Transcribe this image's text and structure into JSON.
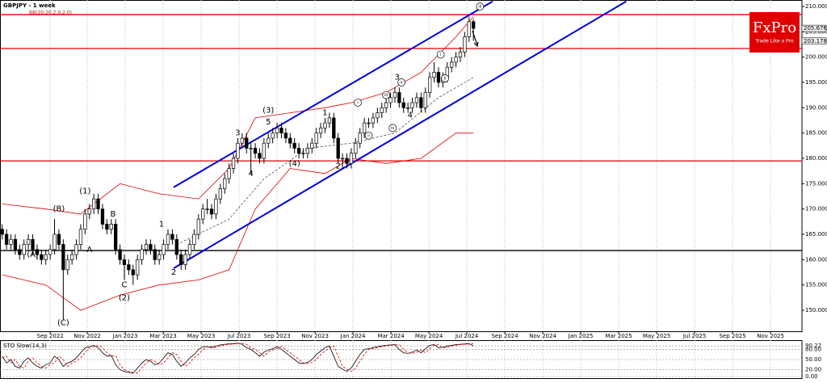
{
  "chart_data": {
    "type": "candlestick",
    "title": "GBPJPY - 1 week",
    "subtitle": "BB(20,20,2.0,2.0)",
    "candles": [
      [
        166,
        167,
        164,
        165
      ],
      [
        165,
        166,
        162,
        163
      ],
      [
        163,
        165,
        162,
        164
      ],
      [
        164,
        165,
        161,
        162
      ],
      [
        162,
        163,
        160,
        161
      ],
      [
        161,
        164,
        160,
        163
      ],
      [
        163,
        165,
        162,
        164
      ],
      [
        164,
        165,
        161,
        162
      ],
      [
        162,
        163,
        160,
        161
      ],
      [
        161,
        162,
        159,
        160
      ],
      [
        160,
        162,
        159,
        161
      ],
      [
        161,
        163,
        160,
        162
      ],
      [
        162,
        168,
        161,
        165
      ],
      [
        165,
        166,
        162,
        163
      ],
      [
        163,
        164,
        148,
        158
      ],
      [
        158,
        161,
        157,
        160
      ],
      [
        160,
        162,
        159,
        161
      ],
      [
        161,
        164,
        160,
        163
      ],
      [
        163,
        167,
        162,
        166
      ],
      [
        166,
        170,
        165,
        169
      ],
      [
        169,
        171,
        168,
        170
      ],
      [
        170,
        173,
        169,
        172
      ],
      [
        172,
        173,
        169,
        170
      ],
      [
        170,
        171,
        166,
        167
      ],
      [
        167,
        168,
        165,
        166
      ],
      [
        166,
        168,
        165,
        167
      ],
      [
        167,
        168,
        161,
        162
      ],
      [
        162,
        163,
        159,
        160
      ],
      [
        160,
        161,
        156,
        159
      ],
      [
        159,
        160,
        157,
        158
      ],
      [
        158,
        159,
        155,
        157
      ],
      [
        157,
        161,
        156,
        160
      ],
      [
        160,
        163,
        159,
        162
      ],
      [
        162,
        164,
        161,
        163
      ],
      [
        163,
        164,
        161,
        162
      ],
      [
        162,
        163,
        159,
        160
      ],
      [
        160,
        162,
        159,
        161
      ],
      [
        161,
        164,
        160,
        163
      ],
      [
        163,
        166,
        162,
        165
      ],
      [
        165,
        166,
        163,
        164
      ],
      [
        164,
        165,
        160,
        161
      ],
      [
        161,
        162,
        158,
        159
      ],
      [
        159,
        162,
        158,
        161
      ],
      [
        161,
        164,
        160,
        163
      ],
      [
        163,
        166,
        162,
        165
      ],
      [
        165,
        169,
        164,
        168
      ],
      [
        168,
        171,
        167,
        170
      ],
      [
        170,
        172,
        169,
        170
      ],
      [
        170,
        171,
        168,
        169
      ],
      [
        169,
        173,
        168,
        172
      ],
      [
        172,
        175,
        171,
        174
      ],
      [
        174,
        177,
        173,
        176
      ],
      [
        176,
        179,
        175,
        178
      ],
      [
        178,
        181,
        177,
        180
      ],
      [
        180,
        184,
        179,
        183
      ],
      [
        183,
        185,
        182,
        184
      ],
      [
        184,
        185,
        181,
        182
      ],
      [
        182,
        183,
        177,
        182
      ],
      [
        182,
        183,
        180,
        181
      ],
      [
        181,
        182,
        179,
        180
      ],
      [
        180,
        184,
        179,
        183
      ],
      [
        183,
        185,
        182,
        184
      ],
      [
        184,
        186,
        183,
        185
      ],
      [
        185,
        187,
        184,
        186
      ],
      [
        186,
        187,
        184,
        185
      ],
      [
        185,
        186,
        183,
        184
      ],
      [
        184,
        185,
        182,
        183
      ],
      [
        183,
        184,
        181,
        182
      ],
      [
        182,
        183,
        180,
        181
      ],
      [
        181,
        182,
        180,
        181
      ],
      [
        181,
        183,
        180,
        182
      ],
      [
        182,
        184,
        181,
        183
      ],
      [
        183,
        186,
        182,
        185
      ],
      [
        185,
        187,
        184,
        186
      ],
      [
        186,
        188,
        185,
        187
      ],
      [
        187,
        189,
        186,
        188
      ],
      [
        188,
        189,
        183,
        184
      ],
      [
        184,
        185,
        179,
        180
      ],
      [
        180,
        181,
        178,
        180
      ],
      [
        180,
        181,
        178,
        179
      ],
      [
        179,
        182,
        178,
        181
      ],
      [
        181,
        184,
        180,
        183
      ],
      [
        183,
        186,
        182,
        185
      ],
      [
        185,
        188,
        184,
        187
      ],
      [
        187,
        188,
        186,
        187
      ],
      [
        187,
        189,
        186,
        188
      ],
      [
        188,
        190,
        187,
        189
      ],
      [
        189,
        191,
        188,
        190
      ],
      [
        190,
        192,
        189,
        191
      ],
      [
        191,
        193,
        190,
        192
      ],
      [
        192,
        194,
        191,
        193
      ],
      [
        193,
        194,
        190,
        191
      ],
      [
        191,
        192,
        189,
        190
      ],
      [
        190,
        191,
        189,
        190
      ],
      [
        190,
        192,
        189,
        191
      ],
      [
        191,
        193,
        190,
        192
      ],
      [
        192,
        193,
        189,
        190
      ],
      [
        190,
        194,
        189,
        193
      ],
      [
        193,
        197,
        192,
        196
      ],
      [
        196,
        199,
        195,
        197
      ],
      [
        197,
        198,
        194,
        195
      ],
      [
        195,
        197,
        194,
        196
      ],
      [
        196,
        199,
        195,
        198
      ],
      [
        198,
        200,
        197,
        199
      ],
      [
        199,
        201,
        198,
        200
      ],
      [
        200,
        202,
        199,
        201
      ],
      [
        201,
        205,
        200,
        204
      ],
      [
        204,
        208,
        203,
        207
      ],
      [
        207,
        207.5,
        203.2,
        205.67
      ]
    ],
    "bands": {
      "color": "#e00000",
      "x": [
        0,
        10,
        18,
        27,
        36,
        45,
        52,
        58,
        66,
        74,
        80,
        88,
        96,
        104,
        108
      ],
      "upper": [
        171,
        170,
        169,
        175,
        173,
        172,
        178,
        188,
        189,
        190,
        191,
        193,
        197,
        204,
        208
      ],
      "lower": [
        157,
        155,
        150,
        153,
        155,
        156,
        158,
        170,
        178,
        177,
        180,
        179,
        180,
        185,
        185
      ]
    },
    "ma": {
      "color": "#555555",
      "x": [
        40,
        52,
        60,
        70,
        80,
        90,
        100,
        108
      ],
      "values": [
        163,
        168,
        176,
        182,
        183,
        185,
        192,
        196
      ]
    },
    "levels": [
      {
        "value": 208.4,
        "color": "#e00000"
      },
      {
        "value": 201.7,
        "color": "#e00000"
      },
      {
        "value": 179.5,
        "color": "#e00000"
      },
      {
        "value": 161.8,
        "color": "#000000"
      }
    ],
    "trend_lines": [
      {
        "x": [
          39.3,
          112.4
        ],
        "y": [
          174.3,
          211
        ],
        "color": "#0000e0"
      },
      {
        "x": [
          39.3,
          143
        ],
        "y": [
          158.3,
          211
        ],
        "color": "#0000e0"
      }
    ],
    "annotations": [
      {
        "text": "(A)",
        "x": 7,
        "y": 161
      },
      {
        "text": "(B)",
        "x": 13,
        "y": 170
      },
      {
        "text": "(C)",
        "x": 14,
        "y": 147.5
      },
      {
        "text": "(1)",
        "x": 19,
        "y": 173.5
      },
      {
        "text": "A",
        "x": 20,
        "y": 162
      },
      {
        "text": "B",
        "x": 25.4,
        "y": 169
      },
      {
        "text": "C",
        "x": 28,
        "y": 155
      },
      {
        "text": "(2)",
        "x": 28,
        "y": 152.5
      },
      {
        "text": "1",
        "x": 36.5,
        "y": 167
      },
      {
        "text": "2",
        "x": 39.3,
        "y": 157.5
      },
      {
        "text": "3",
        "x": 54,
        "y": 185
      },
      {
        "text": "4",
        "x": 57,
        "y": 177
      },
      {
        "text": "(3)",
        "x": 61,
        "y": 189.5
      },
      {
        "text": "5",
        "x": 61,
        "y": 187.2
      },
      {
        "text": "(4)",
        "x": 67,
        "y": 179
      },
      {
        "text": "1",
        "x": 74,
        "y": 189
      },
      {
        "text": "2",
        "x": 77,
        "y": 178.5
      },
      {
        "text": "3",
        "x": 90.5,
        "y": 196
      },
      {
        "text": "4",
        "x": 93.5,
        "y": 188.5
      },
      {
        "text": "i",
        "x": 81.5,
        "y": 191,
        "circled": true
      },
      {
        "text": "ii",
        "x": 84,
        "y": 184.5,
        "circled": true
      },
      {
        "text": "iii",
        "x": 88,
        "y": 192.5,
        "circled": true
      },
      {
        "text": "iv",
        "x": 89.5,
        "y": 186,
        "circled": true
      },
      {
        "text": "v",
        "x": 91.5,
        "y": 195,
        "circled": true
      },
      {
        "text": "i",
        "x": 100.5,
        "y": 200.5,
        "circled": true
      },
      {
        "text": "ii",
        "x": 101.5,
        "y": 195.8,
        "circled": true
      },
      {
        "text": "iii",
        "x": 109.5,
        "y": 210,
        "circled": true
      }
    ],
    "xlim": [
      -0.5,
      183.3
    ],
    "ylim": [
      145.85,
      211.28
    ],
    "yticks": [
      {
        "value": 150,
        "label": "150.000"
      },
      {
        "value": 155,
        "label": "155.000"
      },
      {
        "value": 160,
        "label": "160.000"
      },
      {
        "value": 165,
        "label": "165.000"
      },
      {
        "value": 170,
        "label": "170.000"
      },
      {
        "value": 175,
        "label": "175.000"
      },
      {
        "value": 180,
        "label": "180.000"
      },
      {
        "value": 185,
        "label": "185.000"
      },
      {
        "value": 190,
        "label": "190.000"
      },
      {
        "value": 195,
        "label": "195.000"
      },
      {
        "value": 200,
        "label": "200.000"
      },
      {
        "value": 205,
        "label": "205.000"
      },
      {
        "value": 210,
        "label": "210.000"
      }
    ],
    "price_tags": [
      {
        "value": 205.676,
        "label": "205.676"
      },
      {
        "value": 203.178,
        "label": "203.178"
      }
    ],
    "xticks": [
      {
        "value": 11,
        "label": "Sep 2022"
      },
      {
        "value": 19.5,
        "label": "Nov 2022"
      },
      {
        "value": 28.2,
        "label": "Jan 2023"
      },
      {
        "value": 36.9,
        "label": "Mar 2023"
      },
      {
        "value": 45.6,
        "label": "May 2023"
      },
      {
        "value": 54.3,
        "label": "Jul 2023"
      },
      {
        "value": 63,
        "label": "Sep 2023"
      },
      {
        "value": 71.7,
        "label": "Nov 2023"
      },
      {
        "value": 80.4,
        "label": "Jan 2024"
      },
      {
        "value": 89.1,
        "label": "Mar 2024"
      },
      {
        "value": 97.8,
        "label": "May 2024"
      },
      {
        "value": 106.5,
        "label": "Jul 2024"
      },
      {
        "value": 115.2,
        "label": "Sep 2024"
      },
      {
        "value": 123.9,
        "label": "Nov 2024"
      },
      {
        "value": 132.6,
        "label": "Jan 2025"
      },
      {
        "value": 141.3,
        "label": "Mar 2025"
      },
      {
        "value": 150,
        "label": "May 2025"
      },
      {
        "value": 158.7,
        "label": "Jul 2025"
      },
      {
        "value": 167.4,
        "label": "Sep 2025"
      },
      {
        "value": 176.1,
        "label": "Nov 2025"
      }
    ],
    "grid": true,
    "oscillator": {
      "title": "STO Slow(14,3)",
      "ylim": [
        0,
        100
      ],
      "yticks": [
        {
          "value": 90.22,
          "label": "90.22"
        },
        {
          "value": 80,
          "label": "80.00"
        },
        {
          "value": 50,
          "label": "50.00"
        },
        {
          "value": 20,
          "label": "20.00"
        },
        {
          "value": 0,
          "label": "0.00"
        }
      ],
      "series": [
        {
          "color": "#000000",
          "values": [
            60,
            40,
            50,
            30,
            25,
            45,
            55,
            40,
            30,
            25,
            35,
            40,
            60,
            50,
            30,
            40,
            45,
            55,
            70,
            85,
            88,
            92,
            85,
            70,
            60,
            62,
            35,
            20,
            15,
            12,
            10,
            25,
            40,
            50,
            45,
            35,
            40,
            55,
            70,
            65,
            45,
            30,
            40,
            55,
            65,
            80,
            88,
            88,
            85,
            90,
            93,
            95,
            96,
            97,
            98,
            95,
            85,
            80,
            70,
            60,
            72,
            78,
            82,
            88,
            80,
            70,
            60,
            50,
            40,
            38,
            42,
            50,
            65,
            75,
            85,
            90,
            60,
            30,
            22,
            15,
            25,
            45,
            65,
            80,
            82,
            85,
            88,
            90,
            92,
            93,
            94,
            80,
            70,
            68,
            72,
            78,
            70,
            82,
            92,
            94,
            85,
            86,
            90,
            92,
            94,
            95,
            96,
            97,
            90
          ]
        },
        {
          "color": "#e00000",
          "dashed": true,
          "values": [
            55,
            60,
            40,
            50,
            30,
            25,
            45,
            55,
            40,
            30,
            25,
            35,
            40,
            60,
            50,
            30,
            40,
            45,
            55,
            70,
            85,
            88,
            92,
            85,
            70,
            60,
            62,
            35,
            20,
            15,
            12,
            10,
            25,
            40,
            50,
            45,
            35,
            40,
            55,
            70,
            65,
            45,
            30,
            40,
            55,
            65,
            80,
            88,
            88,
            85,
            90,
            93,
            95,
            96,
            97,
            98,
            95,
            85,
            80,
            70,
            60,
            72,
            78,
            82,
            88,
            80,
            70,
            60,
            50,
            40,
            38,
            42,
            50,
            65,
            75,
            85,
            90,
            60,
            30,
            22,
            15,
            25,
            45,
            65,
            80,
            82,
            85,
            88,
            90,
            92,
            93,
            94,
            80,
            70,
            68,
            72,
            78,
            70,
            82,
            92,
            94,
            85,
            86,
            90,
            92,
            94,
            95,
            96,
            97
          ]
        }
      ]
    }
  },
  "logo": {
    "name": "FxPro",
    "tagline": "Trade Like a Pro"
  }
}
